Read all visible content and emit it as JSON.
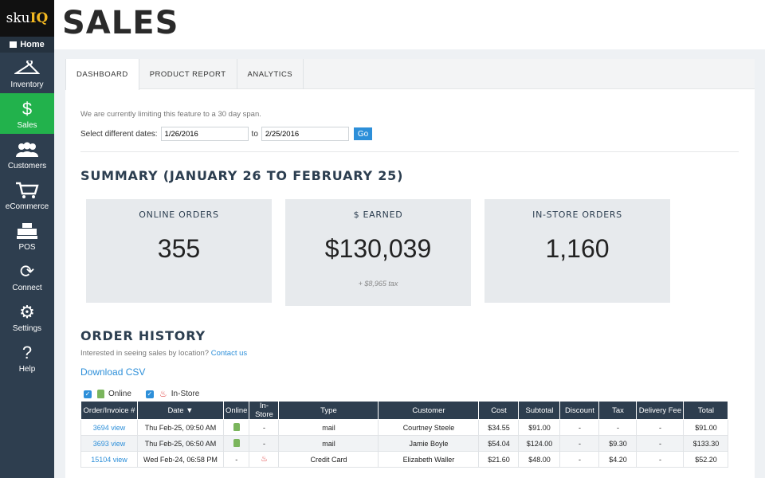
{
  "sidebar": {
    "logo_prefix": "sku",
    "logo_suffix": "IQ",
    "home": "Home",
    "items": [
      {
        "label": "Inventory",
        "icon": "hanger-icon"
      },
      {
        "label": "Sales",
        "icon": "dollar-icon"
      },
      {
        "label": "Customers",
        "icon": "people-icon"
      },
      {
        "label": "eCommerce",
        "icon": "cart-icon"
      },
      {
        "label": "POS",
        "icon": "register-icon"
      },
      {
        "label": "Connect",
        "icon": "sync-icon"
      },
      {
        "label": "Settings",
        "icon": "gear-icon"
      },
      {
        "label": "Help",
        "icon": "question-icon"
      }
    ]
  },
  "header": {
    "title": "SALES"
  },
  "tabs": [
    "DASHBOARD",
    "PRODUCT REPORT",
    "ANALYTICS"
  ],
  "dates": {
    "notice": "We are currently limiting this feature to a 30 day span.",
    "label": "Select different dates:",
    "from": "1/26/2016",
    "to_label": "to",
    "to": "2/25/2016",
    "go": "Go"
  },
  "summary": {
    "title": "SUMMARY (JANUARY 26 TO FEBRUARY 25)",
    "cards": [
      {
        "title": "ONLINE ORDERS",
        "value": "355",
        "sub": ""
      },
      {
        "title": "$ EARNED",
        "value": "$130,039",
        "sub": "+ $8,965 tax"
      },
      {
        "title": "IN-STORE ORDERS",
        "value": "1,160",
        "sub": ""
      }
    ]
  },
  "orders": {
    "title": "ORDER HISTORY",
    "interest": "Interested in seeing sales by location?",
    "contact": "Contact us",
    "csv": "Download CSV",
    "filter_online": "Online",
    "filter_instore": "In-Store",
    "columns": [
      "Order/Invoice #",
      "Date ▼",
      "Online",
      "In-Store",
      "Type",
      "Customer",
      "Cost",
      "Subtotal",
      "Discount",
      "Tax",
      "Delivery Fee",
      "Total"
    ],
    "rows": [
      {
        "order": "3694 view",
        "date": "Thu Feb-25, 09:50 AM",
        "online": true,
        "instore": false,
        "type": "mail",
        "customer": "Courtney Steele",
        "cost": "$34.55",
        "subtotal": "$91.00",
        "discount": "-",
        "tax": "-",
        "delivery": "-",
        "total": "$91.00"
      },
      {
        "order": "3693 view",
        "date": "Thu Feb-25, 06:50 AM",
        "online": true,
        "instore": false,
        "type": "mail",
        "customer": "Jamie Boyle",
        "cost": "$54.04",
        "subtotal": "$124.00",
        "discount": "-",
        "tax": "$9.30",
        "delivery": "-",
        "total": "$133.30"
      },
      {
        "order": "15104 view",
        "date": "Wed Feb-24, 06:58 PM",
        "online": false,
        "instore": true,
        "type": "Credit Card",
        "customer": "Elizabeth Waller",
        "cost": "$21.60",
        "subtotal": "$48.00",
        "discount": "-",
        "tax": "$4.20",
        "delivery": "-",
        "total": "$52.20"
      }
    ]
  }
}
